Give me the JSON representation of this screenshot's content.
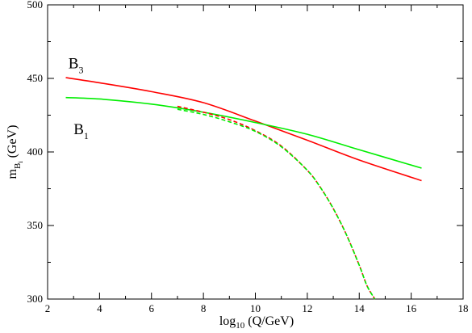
{
  "chart_data": {
    "type": "line",
    "title": "",
    "xlabel": {
      "base": "log",
      "sub": "10",
      "rest": " (Q/GeV)"
    },
    "ylabel": {
      "base": "m",
      "sub": "B",
      "subsub": "i",
      "rest": " (GeV)"
    },
    "xlim": [
      2,
      18
    ],
    "ylim": [
      300,
      500
    ],
    "xticks": [
      2,
      4,
      6,
      8,
      10,
      12,
      14,
      16,
      18
    ],
    "yticks": [
      300,
      350,
      400,
      450,
      500
    ],
    "grid": false,
    "annotations": [
      {
        "id": "b3",
        "base": "B",
        "sub": "3",
        "x": 2.8,
        "y": 457
      },
      {
        "id": "b1",
        "base": "B",
        "sub": "1",
        "x": 3.0,
        "y": 412
      }
    ],
    "series": [
      {
        "id": "b3-solid",
        "color": "#ff0000",
        "dash": "solid",
        "x": [
          2.7,
          4,
          6,
          8,
          10,
          12,
          14,
          16.4
        ],
        "y": [
          450.5,
          447,
          441,
          433.5,
          421,
          408,
          394.5,
          380.5
        ]
      },
      {
        "id": "b1-solid",
        "color": "#00ee00",
        "dash": "solid",
        "x": [
          2.7,
          4,
          6,
          8,
          10,
          12,
          14,
          16.4
        ],
        "y": [
          437,
          436,
          432.5,
          427,
          420,
          412,
          401.5,
          389
        ]
      },
      {
        "id": "b3-dashed",
        "color": "#ff0000",
        "dash": "dashed",
        "x": [
          7.0,
          8,
          9,
          10,
          11,
          12,
          12.5,
          13,
          13.5,
          14,
          14.3,
          14.6
        ],
        "y": [
          431,
          427,
          422,
          414.5,
          404,
          387.5,
          376,
          361.5,
          344,
          323,
          309,
          300
        ]
      },
      {
        "id": "b1-dashed",
        "color": "#00ee00",
        "dash": "dashed",
        "x": [
          7.0,
          8,
          9,
          10,
          11,
          12,
          12.5,
          13,
          13.5,
          14,
          14.3,
          14.6
        ],
        "y": [
          429,
          425.5,
          420.5,
          414,
          403.5,
          387.5,
          376,
          361.5,
          344,
          323,
          309,
          300
        ]
      }
    ]
  }
}
